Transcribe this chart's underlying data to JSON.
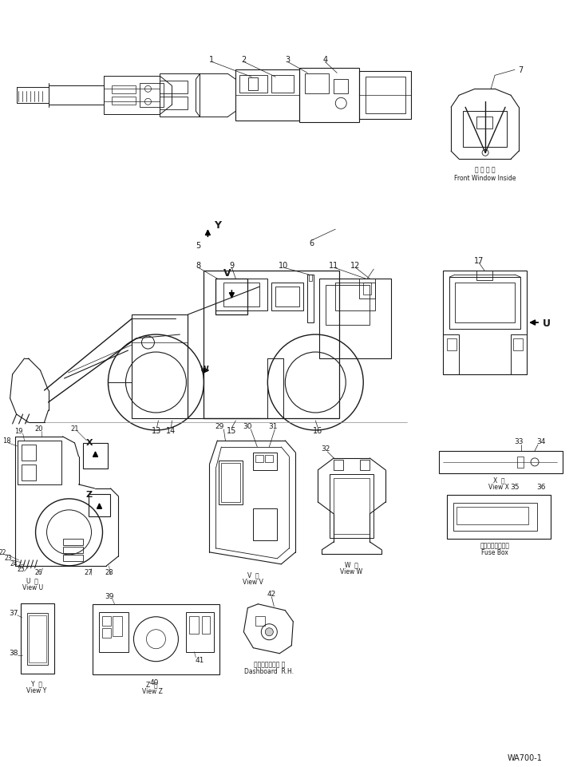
{
  "background_color": "#ffffff",
  "fig_width": 7.33,
  "fig_height": 9.62,
  "dpi": 100,
  "watermark": "WA700-1",
  "line_color": "#1a1a1a",
  "labels": {
    "front_window_ja": "前 窓 内 面",
    "front_window": "Front Window Inside",
    "view_u_ja": "U  前",
    "view_u": "View U",
    "view_v_ja": "V  後",
    "view_v": "View V",
    "view_w_ja": "W  後",
    "view_w": "View W",
    "view_x_ja": "X  前",
    "view_x": "View X",
    "view_y_ja": "Y  前",
    "view_y": "View Y",
    "view_z_ja": "Z  後",
    "view_z": "View Z",
    "fuse_box_ja": "ヒューズボックス",
    "fuse_box": "Fuse Box",
    "dashboard_ja": "ダッシュボード 右",
    "dashboard": "Dashboard  R.H."
  }
}
